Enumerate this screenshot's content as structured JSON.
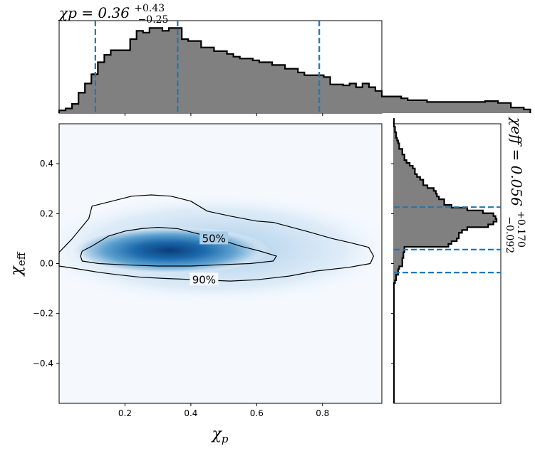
{
  "chart_data": [
    {
      "type": "heatmap",
      "panel": "joint",
      "xlabel": "χp",
      "ylabel": "χeff",
      "xlim": [
        0.0,
        0.98
      ],
      "ylim": [
        -0.56,
        0.56
      ],
      "xticks": [
        0.2,
        0.4,
        0.6,
        0.8
      ],
      "yticks": [
        -0.4,
        -0.2,
        0.0,
        0.2,
        0.4
      ],
      "x_tick_labels": [
        "0.2",
        "0.4",
        "0.6",
        "0.8"
      ],
      "y_tick_labels": [
        "−0.4",
        "−0.2",
        "0.0",
        "0.2",
        "0.4"
      ],
      "colormap": "Blues",
      "density_peak": {
        "x": 0.3,
        "y": 0.055
      },
      "contours": [
        {
          "label": "50%",
          "label_at": [
            0.47,
            0.1
          ],
          "points": [
            [
              0.07,
              0.05
            ],
            [
              0.1,
              0.07
            ],
            [
              0.15,
              0.11
            ],
            [
              0.2,
              0.13
            ],
            [
              0.25,
              0.14
            ],
            [
              0.3,
              0.145
            ],
            [
              0.36,
              0.14
            ],
            [
              0.42,
              0.12
            ],
            [
              0.48,
              0.1
            ],
            [
              0.55,
              0.07
            ],
            [
              0.61,
              0.05
            ],
            [
              0.66,
              0.03
            ],
            [
              0.65,
              0.01
            ],
            [
              0.58,
              0.0
            ],
            [
              0.48,
              -0.005
            ],
            [
              0.4,
              -0.01
            ],
            [
              0.3,
              -0.01
            ],
            [
              0.2,
              -0.005
            ],
            [
              0.12,
              0.0
            ],
            [
              0.07,
              0.01
            ],
            [
              0.065,
              0.03
            ]
          ]
        },
        {
          "label": "90%",
          "label_at": [
            0.44,
            -0.065
          ],
          "points": [
            [
              0.0,
              0.045
            ],
            [
              0.04,
              0.1
            ],
            [
              0.09,
              0.18
            ],
            [
              0.1,
              0.23
            ],
            [
              0.16,
              0.25
            ],
            [
              0.22,
              0.27
            ],
            [
              0.28,
              0.275
            ],
            [
              0.34,
              0.27
            ],
            [
              0.4,
              0.25
            ],
            [
              0.45,
              0.21
            ],
            [
              0.52,
              0.19
            ],
            [
              0.6,
              0.17
            ],
            [
              0.65,
              0.165
            ],
            [
              0.75,
              0.13
            ],
            [
              0.83,
              0.1
            ],
            [
              0.88,
              0.085
            ],
            [
              0.94,
              0.065
            ],
            [
              0.955,
              0.03
            ],
            [
              0.945,
              0.0
            ],
            [
              0.88,
              -0.015
            ],
            [
              0.78,
              -0.03
            ],
            [
              0.7,
              -0.05
            ],
            [
              0.6,
              -0.065
            ],
            [
              0.52,
              -0.07
            ],
            [
              0.33,
              -0.06
            ],
            [
              0.25,
              -0.055
            ],
            [
              0.18,
              -0.045
            ],
            [
              0.12,
              -0.035
            ],
            [
              0.05,
              -0.02
            ],
            [
              0.0,
              -0.01
            ]
          ]
        }
      ]
    },
    {
      "type": "bar",
      "panel": "top-marginal",
      "title": "χp = 0.36",
      "title_sup": "+0.43",
      "title_sub": "−0.25",
      "xlim": [
        0.0,
        0.98
      ],
      "bin_start": 0.0,
      "bin_width": 0.0196,
      "values": [
        3,
        5,
        10,
        22,
        32,
        42,
        55,
        63,
        68,
        68,
        68,
        80,
        89,
        87,
        92,
        92,
        89,
        92,
        92,
        80,
        78,
        78,
        71,
        71,
        67,
        67,
        64,
        61,
        59,
        59,
        57,
        55,
        55,
        52,
        52,
        48,
        48,
        44,
        41,
        41,
        41,
        39,
        31,
        31,
        30,
        32,
        28,
        32,
        28,
        24,
        18,
        18,
        18,
        16,
        14,
        14,
        14,
        12,
        12,
        12,
        12,
        12,
        12,
        12,
        12,
        12,
        13,
        13,
        11,
        11,
        6,
        6,
        4
      ],
      "vlines": [
        0.11,
        0.36,
        0.79
      ],
      "bar_color": "#808080",
      "line_color": "#1f77b4"
    },
    {
      "type": "bar",
      "panel": "right-marginal",
      "orientation": "horizontal",
      "title": "χeff = 0.056",
      "title_sup": "+0.170",
      "title_sub": "−0.092",
      "ylim": [
        -0.56,
        0.56
      ],
      "bin_start": -0.56,
      "bin_width": 0.0112,
      "values": [
        0,
        0,
        0,
        0,
        0,
        0,
        0,
        0,
        0,
        0,
        0,
        0,
        0,
        0,
        0,
        0,
        0,
        0,
        0,
        0,
        0,
        0,
        0,
        0,
        0,
        0,
        0,
        0,
        0,
        0,
        0,
        0,
        0,
        0,
        0,
        0,
        0,
        0,
        0,
        0,
        0,
        0,
        0,
        1,
        2,
        2,
        4,
        4,
        5,
        8,
        8,
        8,
        9,
        9,
        10,
        10,
        52,
        55,
        60,
        62,
        62,
        65,
        70,
        90,
        95,
        98,
        97,
        95,
        85,
        70,
        55,
        48,
        48,
        43,
        41,
        40,
        38,
        32,
        28,
        28,
        25,
        22,
        20,
        20,
        18,
        15,
        12,
        10,
        10,
        8,
        8,
        5,
        5,
        4,
        3,
        2,
        2,
        1,
        1,
        0,
        0,
        0
      ],
      "hlines": [
        -0.036,
        0.056,
        0.226
      ],
      "bar_color": "#808080",
      "line_color": "#1f77b4"
    }
  ]
}
